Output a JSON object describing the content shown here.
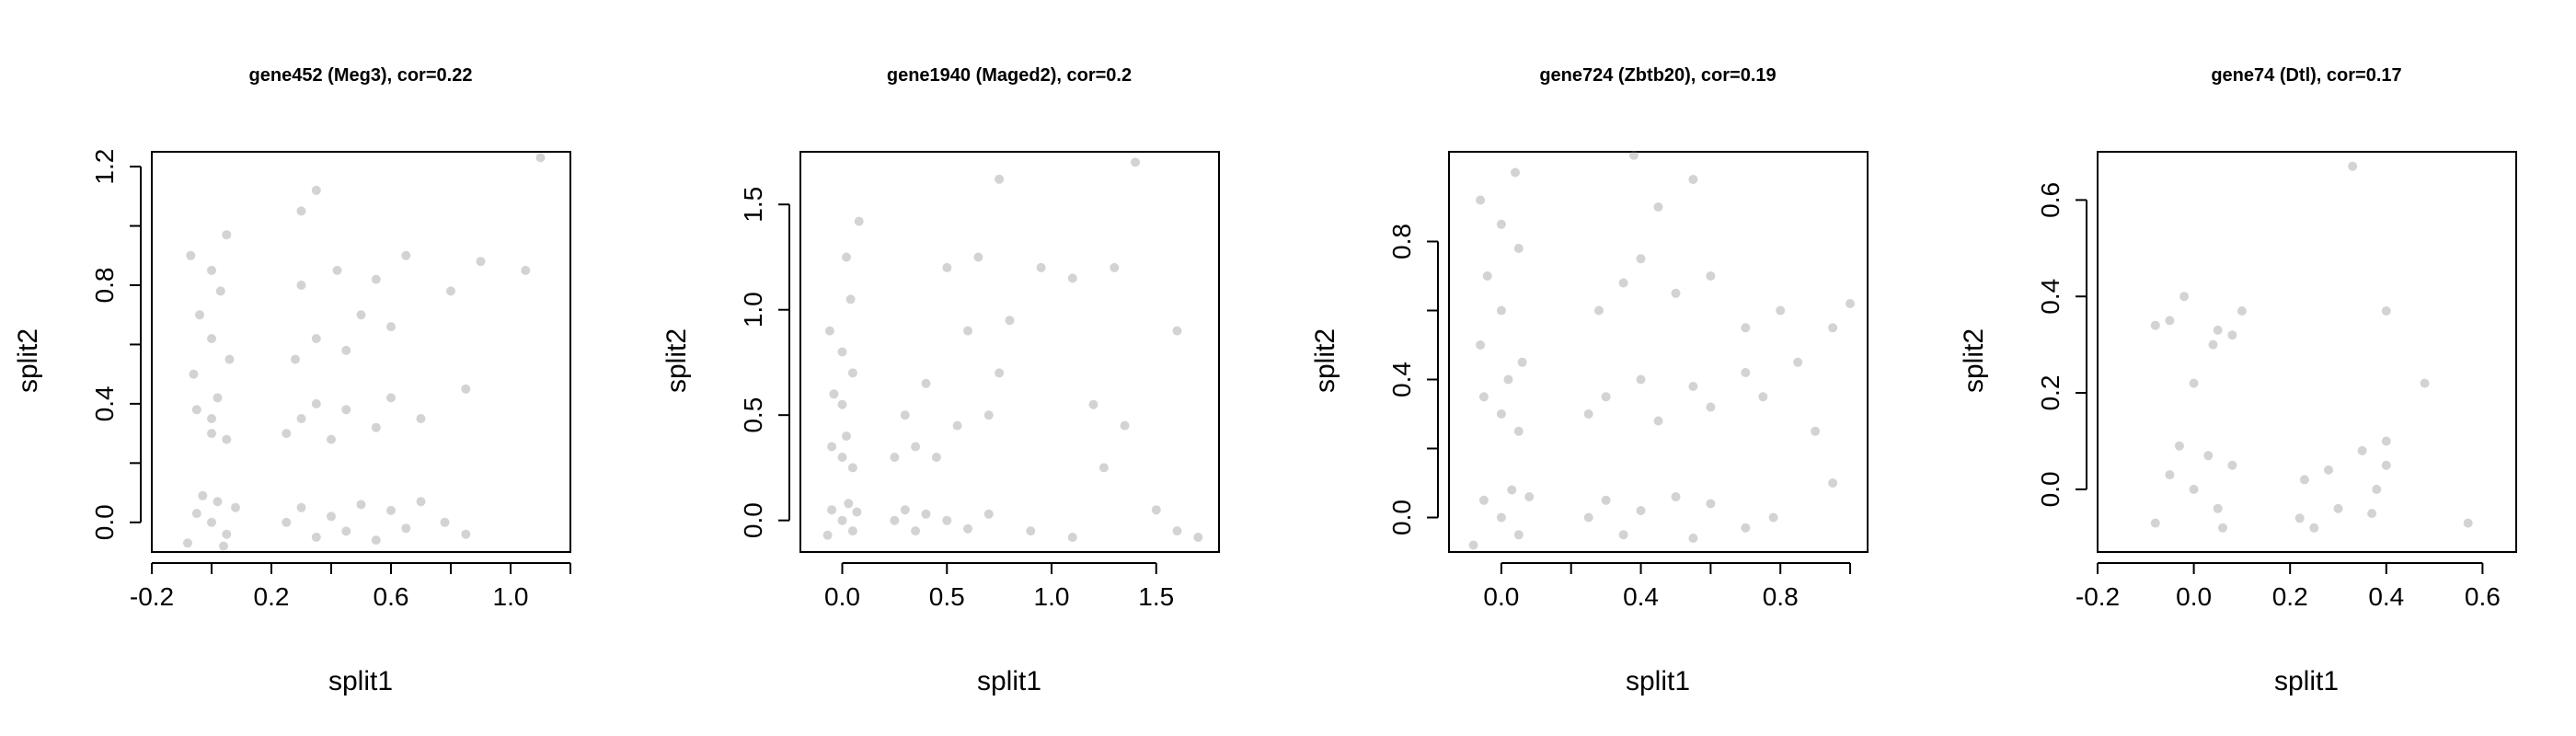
{
  "figure": {
    "background": "#ffffff",
    "point_color": "#808080"
  },
  "chart_data": [
    {
      "type": "scatter",
      "title": "gene452 (Meg3), cor=0.22",
      "xlabel": "split1",
      "ylabel": "split2",
      "xlim": [
        -0.2,
        1.2
      ],
      "ylim": [
        -0.1,
        1.25
      ],
      "xticks": [
        -0.2,
        0.0,
        0.2,
        0.4,
        0.6,
        0.8,
        1.0,
        1.2
      ],
      "xtick_labels": [
        "-0.2",
        "",
        "0.2",
        "",
        "0.6",
        "",
        "1.0",
        ""
      ],
      "yticks": [
        0.0,
        0.2,
        0.4,
        0.6,
        0.8,
        1.0,
        1.2
      ],
      "ytick_labels": [
        "0.0",
        "",
        "0.4",
        "",
        "0.8",
        "",
        "1.2"
      ],
      "points": [
        [
          0.0,
          0.0
        ],
        [
          -0.05,
          0.03
        ],
        [
          0.05,
          -0.04
        ],
        [
          0.02,
          0.07
        ],
        [
          -0.08,
          -0.07
        ],
        [
          0.08,
          0.05
        ],
        [
          -0.03,
          0.09
        ],
        [
          0.04,
          -0.08
        ],
        [
          0.0,
          0.3
        ],
        [
          0.0,
          0.35
        ],
        [
          -0.05,
          0.38
        ],
        [
          0.05,
          0.28
        ],
        [
          0.02,
          0.42
        ],
        [
          -0.06,
          0.5
        ],
        [
          0.06,
          0.55
        ],
        [
          0.0,
          0.62
        ],
        [
          -0.04,
          0.7
        ],
        [
          0.03,
          0.78
        ],
        [
          0.0,
          0.85
        ],
        [
          -0.07,
          0.9
        ],
        [
          0.05,
          0.97
        ],
        [
          0.25,
          0.0
        ],
        [
          0.3,
          0.05
        ],
        [
          0.35,
          -0.05
        ],
        [
          0.4,
          0.02
        ],
        [
          0.45,
          -0.03
        ],
        [
          0.5,
          0.06
        ],
        [
          0.55,
          -0.06
        ],
        [
          0.6,
          0.04
        ],
        [
          0.65,
          -0.02
        ],
        [
          0.7,
          0.07
        ],
        [
          0.78,
          0.0
        ],
        [
          0.85,
          -0.04
        ],
        [
          0.25,
          0.3
        ],
        [
          0.3,
          0.35
        ],
        [
          0.35,
          0.4
        ],
        [
          0.4,
          0.28
        ],
        [
          0.45,
          0.38
        ],
        [
          0.55,
          0.32
        ],
        [
          0.6,
          0.42
        ],
        [
          0.7,
          0.35
        ],
        [
          0.28,
          0.55
        ],
        [
          0.35,
          0.62
        ],
        [
          0.45,
          0.58
        ],
        [
          0.5,
          0.7
        ],
        [
          0.6,
          0.66
        ],
        [
          0.3,
          0.8
        ],
        [
          0.42,
          0.85
        ],
        [
          0.55,
          0.82
        ],
        [
          0.65,
          0.9
        ],
        [
          0.8,
          0.78
        ],
        [
          0.9,
          0.88
        ],
        [
          1.05,
          0.85
        ],
        [
          1.1,
          1.23
        ],
        [
          0.3,
          1.05
        ],
        [
          0.35,
          1.12
        ],
        [
          0.85,
          0.45
        ]
      ]
    },
    {
      "type": "scatter",
      "title": "gene1940 (Maged2), cor=0.2",
      "xlabel": "split1",
      "ylabel": "split2",
      "xlim": [
        -0.2,
        1.8
      ],
      "ylim": [
        -0.15,
        1.75
      ],
      "xticks": [
        0.0,
        0.5,
        1.0,
        1.5
      ],
      "xtick_labels": [
        "0.0",
        "0.5",
        "1.0",
        "1.5"
      ],
      "yticks": [
        0.0,
        0.5,
        1.0,
        1.5
      ],
      "ytick_labels": [
        "0.0",
        "0.5",
        "1.0",
        "1.5"
      ],
      "points": [
        [
          0.0,
          0.0
        ],
        [
          -0.05,
          0.05
        ],
        [
          0.05,
          -0.05
        ],
        [
          0.03,
          0.08
        ],
        [
          -0.07,
          -0.07
        ],
        [
          0.07,
          0.04
        ],
        [
          0.0,
          0.3
        ],
        [
          -0.05,
          0.35
        ],
        [
          0.05,
          0.25
        ],
        [
          0.02,
          0.4
        ],
        [
          0.0,
          0.55
        ],
        [
          -0.04,
          0.6
        ],
        [
          0.05,
          0.7
        ],
        [
          0.0,
          0.8
        ],
        [
          -0.06,
          0.9
        ],
        [
          0.04,
          1.05
        ],
        [
          0.02,
          1.25
        ],
        [
          0.08,
          1.42
        ],
        [
          0.25,
          0.0
        ],
        [
          0.3,
          0.05
        ],
        [
          0.35,
          -0.05
        ],
        [
          0.4,
          0.03
        ],
        [
          0.5,
          0.0
        ],
        [
          0.6,
          -0.04
        ],
        [
          0.7,
          0.03
        ],
        [
          0.25,
          0.3
        ],
        [
          0.35,
          0.35
        ],
        [
          0.45,
          0.3
        ],
        [
          0.3,
          0.5
        ],
        [
          0.55,
          0.45
        ],
        [
          0.4,
          0.65
        ],
        [
          0.7,
          0.5
        ],
        [
          0.75,
          0.7
        ],
        [
          0.5,
          1.2
        ],
        [
          0.65,
          1.25
        ],
        [
          0.8,
          0.95
        ],
        [
          0.95,
          1.2
        ],
        [
          0.6,
          0.9
        ],
        [
          1.1,
          1.15
        ],
        [
          1.3,
          1.2
        ],
        [
          1.2,
          0.55
        ],
        [
          0.9,
          -0.05
        ],
        [
          1.1,
          -0.08
        ],
        [
          1.25,
          0.25
        ],
        [
          1.35,
          0.45
        ],
        [
          1.4,
          1.7
        ],
        [
          0.75,
          1.62
        ],
        [
          1.6,
          0.9
        ],
        [
          1.5,
          0.05
        ],
        [
          1.6,
          -0.05
        ],
        [
          1.7,
          -0.08
        ]
      ]
    },
    {
      "type": "scatter",
      "title": "gene724 (Zbtb20), cor=0.19",
      "xlabel": "split1",
      "ylabel": "split2",
      "xlim": [
        -0.15,
        1.05
      ],
      "ylim": [
        -0.1,
        1.06
      ],
      "xticks": [
        0.0,
        0.2,
        0.4,
        0.6,
        0.8,
        1.0
      ],
      "xtick_labels": [
        "0.0",
        "",
        "0.4",
        "",
        "0.8",
        ""
      ],
      "yticks": [
        0.0,
        0.2,
        0.4,
        0.6,
        0.8
      ],
      "ytick_labels": [
        "0.0",
        "",
        "0.4",
        "",
        "0.8"
      ],
      "points": [
        [
          0.0,
          0.0
        ],
        [
          -0.05,
          0.05
        ],
        [
          0.05,
          -0.05
        ],
        [
          0.03,
          0.08
        ],
        [
          -0.08,
          -0.08
        ],
        [
          0.08,
          0.06
        ],
        [
          0.0,
          0.3
        ],
        [
          -0.05,
          0.35
        ],
        [
          0.05,
          0.25
        ],
        [
          0.02,
          0.4
        ],
        [
          -0.06,
          0.5
        ],
        [
          0.06,
          0.45
        ],
        [
          0.0,
          0.6
        ],
        [
          -0.04,
          0.7
        ],
        [
          0.05,
          0.78
        ],
        [
          0.0,
          0.85
        ],
        [
          -0.06,
          0.92
        ],
        [
          0.04,
          1.0
        ],
        [
          0.25,
          0.0
        ],
        [
          0.3,
          0.05
        ],
        [
          0.35,
          -0.05
        ],
        [
          0.4,
          0.02
        ],
        [
          0.5,
          0.06
        ],
        [
          0.55,
          -0.06
        ],
        [
          0.6,
          0.04
        ],
        [
          0.7,
          -0.03
        ],
        [
          0.78,
          0.0
        ],
        [
          0.25,
          0.3
        ],
        [
          0.3,
          0.35
        ],
        [
          0.4,
          0.4
        ],
        [
          0.45,
          0.28
        ],
        [
          0.55,
          0.38
        ],
        [
          0.6,
          0.32
        ],
        [
          0.7,
          0.42
        ],
        [
          0.75,
          0.35
        ],
        [
          0.28,
          0.6
        ],
        [
          0.35,
          0.68
        ],
        [
          0.4,
          0.75
        ],
        [
          0.45,
          0.9
        ],
        [
          0.5,
          0.65
        ],
        [
          0.6,
          0.7
        ],
        [
          0.7,
          0.55
        ],
        [
          0.8,
          0.6
        ],
        [
          0.38,
          1.05
        ],
        [
          0.55,
          0.98
        ],
        [
          0.85,
          0.45
        ],
        [
          0.9,
          0.25
        ],
        [
          0.95,
          0.55
        ],
        [
          1.0,
          0.62
        ],
        [
          0.95,
          0.1
        ]
      ]
    },
    {
      "type": "scatter",
      "title": "gene74 (Dtl), cor=0.17",
      "xlabel": "split1",
      "ylabel": "split2",
      "xlim": [
        -0.2,
        0.67
      ],
      "ylim": [
        -0.13,
        0.7
      ],
      "xticks": [
        -0.2,
        0.0,
        0.2,
        0.4,
        0.6
      ],
      "xtick_labels": [
        "-0.2",
        "0.0",
        "0.2",
        "0.4",
        "0.6"
      ],
      "yticks": [
        0.0,
        0.2,
        0.4,
        0.6
      ],
      "ytick_labels": [
        "0.0",
        "0.2",
        "0.4",
        "0.6"
      ],
      "points": [
        [
          0.0,
          0.0
        ],
        [
          -0.05,
          0.03
        ],
        [
          0.05,
          -0.04
        ],
        [
          0.03,
          0.07
        ],
        [
          -0.08,
          -0.07
        ],
        [
          0.08,
          0.05
        ],
        [
          -0.03,
          0.09
        ],
        [
          0.06,
          -0.08
        ],
        [
          -0.05,
          0.35
        ],
        [
          -0.02,
          0.4
        ],
        [
          0.05,
          0.33
        ],
        [
          0.08,
          0.32
        ],
        [
          0.1,
          0.37
        ],
        [
          -0.08,
          0.34
        ],
        [
          0.0,
          0.22
        ],
        [
          0.04,
          0.3
        ],
        [
          0.22,
          -0.06
        ],
        [
          0.25,
          -0.08
        ],
        [
          0.23,
          0.02
        ],
        [
          0.28,
          0.04
        ],
        [
          0.3,
          -0.04
        ],
        [
          0.35,
          0.08
        ],
        [
          0.37,
          -0.05
        ],
        [
          0.38,
          0.0
        ],
        [
          0.4,
          0.05
        ],
        [
          0.4,
          0.1
        ],
        [
          0.4,
          0.37
        ],
        [
          0.48,
          0.22
        ],
        [
          0.33,
          0.67
        ],
        [
          0.57,
          -0.07
        ]
      ]
    }
  ]
}
